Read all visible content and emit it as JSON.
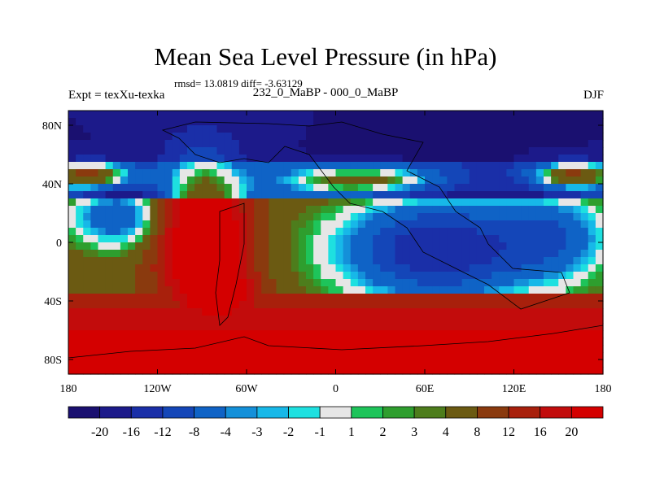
{
  "chart_data": {
    "type": "heatmap",
    "title": "Mean Sea Level Pressure (in hPa)",
    "stats_text": "rmsd= 13.0819 diff= -3.63129",
    "left_label": "Expt = texXu-texka",
    "center_label": "232_0_MaBP - 000_0_MaBP",
    "right_label": "DJF",
    "xlim": [
      -180,
      180
    ],
    "ylim": [
      -90,
      90
    ],
    "x_ticks": [
      {
        "value": -180,
        "label": "180"
      },
      {
        "value": -120,
        "label": "120W"
      },
      {
        "value": -60,
        "label": "60W"
      },
      {
        "value": 0,
        "label": "0"
      },
      {
        "value": 60,
        "label": "60E"
      },
      {
        "value": 120,
        "label": "120E"
      },
      {
        "value": 180,
        "label": "180"
      }
    ],
    "y_ticks": [
      {
        "value": 80,
        "label": "80N"
      },
      {
        "value": 40,
        "label": "40N"
      },
      {
        "value": 0,
        "label": "0"
      },
      {
        "value": -40,
        "label": "40S"
      },
      {
        "value": -80,
        "label": "80S"
      }
    ],
    "colorbar": {
      "levels": [
        "-20",
        "-16",
        "-12",
        "-8",
        "-4",
        "-3",
        "-2",
        "-1",
        "1",
        "2",
        "3",
        "4",
        "8",
        "12",
        "16",
        "20"
      ],
      "colors": [
        "#1a1070",
        "#1c1a8a",
        "#1a2fa8",
        "#1446b8",
        "#0f63c6",
        "#1490d9",
        "#17b8e8",
        "#1ee0e0",
        "#e6e6e6",
        "#1ec45a",
        "#2e9e2e",
        "#4d7d1c",
        "#6b5a12",
        "#8a3a0e",
        "#a8200c",
        "#c20c0c",
        "#d40000"
      ]
    },
    "field": {
      "nx": 72,
      "ny": 36,
      "lon_range": [
        -180,
        180
      ],
      "lat_range": [
        -90,
        90
      ],
      "unit": "hPa"
    }
  }
}
